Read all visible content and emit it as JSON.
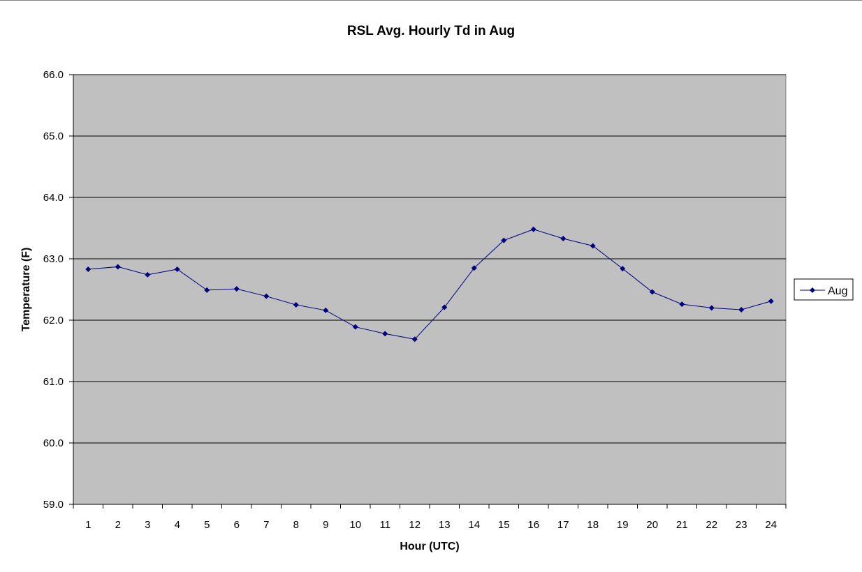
{
  "chart_data": {
    "type": "line",
    "title": "RSL Avg. Hourly Td in Aug",
    "xlabel": "Hour (UTC)",
    "ylabel": "Temperature (F)",
    "ylim": [
      59.0,
      66.0
    ],
    "y_ticks": [
      "59.0",
      "60.0",
      "61.0",
      "62.0",
      "63.0",
      "64.0",
      "65.0",
      "66.0"
    ],
    "categories": [
      "1",
      "2",
      "3",
      "4",
      "5",
      "6",
      "7",
      "8",
      "9",
      "10",
      "11",
      "12",
      "13",
      "14",
      "15",
      "16",
      "17",
      "18",
      "19",
      "20",
      "21",
      "22",
      "23",
      "24"
    ],
    "series": [
      {
        "name": "Aug",
        "color": "#000080",
        "values": [
          62.83,
          62.87,
          62.74,
          62.83,
          62.49,
          62.51,
          62.39,
          62.25,
          62.16,
          61.89,
          61.78,
          61.69,
          62.21,
          62.85,
          63.3,
          63.48,
          63.33,
          63.21,
          62.84,
          62.46,
          62.26,
          62.2,
          62.17,
          62.31
        ]
      }
    ],
    "grid": true,
    "plot_background": "#c0c0c0",
    "legend_position": "right"
  }
}
